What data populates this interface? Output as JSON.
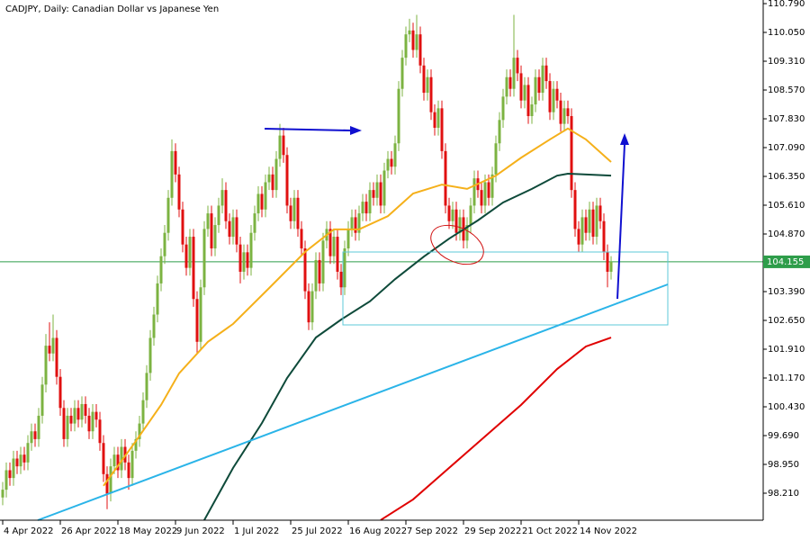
{
  "chart_data": {
    "type": "candlestick",
    "title": "CADJPY, Daily:  Canadian Dollar vs Japanese Yen",
    "up_color": "#7cb342",
    "down_color": "#e01010",
    "ylim": [
      97.516,
      110.883
    ],
    "yticks": [
      {
        "value": 110.79,
        "label": "110.790"
      },
      {
        "value": 110.05,
        "label": "110.050"
      },
      {
        "value": 109.31,
        "label": "109.310"
      },
      {
        "value": 108.57,
        "label": "108.570"
      },
      {
        "value": 107.83,
        "label": "107.830"
      },
      {
        "value": 107.09,
        "label": "107.090"
      },
      {
        "value": 106.35,
        "label": "106.350"
      },
      {
        "value": 105.61,
        "label": "105.610"
      },
      {
        "value": 104.87,
        "label": "104.870"
      },
      {
        "value": 103.39,
        "label": "103.390"
      },
      {
        "value": 102.65,
        "label": "102.650"
      },
      {
        "value": 101.91,
        "label": "101.910"
      },
      {
        "value": 101.17,
        "label": "101.170"
      },
      {
        "value": 100.43,
        "label": "100.430"
      },
      {
        "value": 99.69,
        "label": "99.690"
      },
      {
        "value": 98.95,
        "label": "98.950"
      },
      {
        "value": 98.21,
        "label": "98.210"
      }
    ],
    "current_price": 104.155,
    "current_price_color": "#2e9d4a",
    "categories": [
      "4 Apr 2022",
      null,
      null,
      null,
      null,
      null,
      null,
      null,
      null,
      null,
      null,
      null,
      null,
      null,
      null,
      null,
      "26 Apr 2022",
      null,
      null,
      null,
      null,
      null,
      null,
      null,
      null,
      null,
      null,
      null,
      null,
      null,
      null,
      null,
      "18 May 2022",
      null,
      null,
      null,
      null,
      null,
      null,
      null,
      null,
      null,
      null,
      null,
      null,
      null,
      null,
      null,
      "9 Jun 2022",
      null,
      null,
      null,
      null,
      null,
      null,
      null,
      null,
      null,
      null,
      null,
      null,
      null,
      null,
      null,
      "1 Jul 2022",
      null,
      null,
      null,
      null,
      null,
      null,
      null,
      null,
      null,
      null,
      null,
      null,
      null,
      null,
      null,
      "25 Jul 2022",
      null,
      null,
      null,
      null,
      null,
      null,
      null,
      null,
      null,
      null,
      null,
      null,
      null,
      null,
      null,
      "16 Aug 2022",
      null,
      null,
      null,
      null,
      null,
      null,
      null,
      null,
      null,
      null,
      null,
      null,
      null,
      null,
      null,
      "7 Sep 2022",
      null,
      null,
      null,
      null,
      null,
      null,
      null,
      null,
      null,
      null,
      null,
      null,
      null,
      null,
      null,
      "29 Sep 2022",
      null,
      null,
      null,
      null,
      null,
      null,
      null,
      null,
      null,
      null,
      null,
      null,
      null,
      null,
      null,
      "21 Oct 2022",
      null,
      null,
      null,
      null,
      null,
      null,
      null,
      null,
      null,
      null,
      null,
      null,
      null,
      null,
      null,
      "14 Nov 2022",
      null,
      null,
      null,
      null,
      null,
      null,
      null,
      null,
      null
    ],
    "ohlc": [
      [
        98.1,
        98.5,
        97.9,
        98.3
      ],
      [
        98.3,
        99.0,
        98.1,
        98.8
      ],
      [
        98.8,
        99.0,
        98.4,
        98.6
      ],
      [
        98.6,
        99.3,
        98.4,
        99.1
      ],
      [
        99.1,
        99.3,
        98.7,
        98.9
      ],
      [
        98.9,
        99.4,
        98.7,
        99.2
      ],
      [
        99.2,
        99.4,
        98.8,
        99.0
      ],
      [
        99.0,
        99.7,
        98.8,
        99.5
      ],
      [
        99.5,
        100.0,
        99.3,
        99.8
      ],
      [
        99.8,
        100.0,
        99.4,
        99.6
      ],
      [
        99.6,
        100.4,
        99.4,
        100.2
      ],
      [
        100.2,
        101.2,
        100.0,
        101.0
      ],
      [
        101.0,
        102.3,
        100.8,
        102.0
      ],
      [
        102.0,
        102.6,
        101.6,
        101.8
      ],
      [
        101.8,
        102.8,
        101.6,
        102.2
      ],
      [
        102.2,
        102.4,
        101.0,
        101.2
      ],
      [
        101.2,
        101.4,
        100.2,
        100.4
      ],
      [
        100.4,
        100.6,
        99.4,
        99.6
      ],
      [
        99.6,
        100.4,
        99.4,
        100.2
      ],
      [
        100.2,
        100.4,
        99.8,
        100.0
      ],
      [
        100.0,
        100.6,
        99.8,
        100.4
      ],
      [
        100.4,
        100.6,
        99.9,
        100.1
      ],
      [
        100.1,
        100.7,
        99.9,
        100.5
      ],
      [
        100.5,
        100.7,
        100.0,
        100.2
      ],
      [
        100.2,
        100.4,
        99.6,
        99.8
      ],
      [
        99.8,
        100.5,
        99.6,
        100.3
      ],
      [
        100.3,
        100.5,
        99.9,
        100.1
      ],
      [
        100.1,
        100.3,
        99.3,
        99.5
      ],
      [
        99.5,
        99.7,
        98.5,
        98.7
      ],
      [
        98.7,
        98.9,
        97.8,
        98.2
      ],
      [
        98.2,
        99.1,
        98.0,
        98.9
      ],
      [
        98.9,
        99.4,
        98.7,
        99.2
      ],
      [
        99.2,
        99.4,
        98.6,
        98.8
      ],
      [
        98.8,
        99.6,
        98.6,
        99.4
      ],
      [
        99.4,
        99.6,
        98.8,
        99.0
      ],
      [
        99.0,
        99.2,
        98.3,
        98.6
      ],
      [
        98.6,
        99.5,
        98.4,
        99.3
      ],
      [
        99.3,
        99.8,
        99.1,
        99.6
      ],
      [
        99.6,
        100.2,
        99.4,
        100.0
      ],
      [
        100.0,
        100.8,
        99.8,
        100.6
      ],
      [
        100.6,
        101.5,
        100.4,
        101.3
      ],
      [
        101.3,
        102.4,
        101.1,
        102.2
      ],
      [
        102.2,
        103.0,
        102.0,
        102.8
      ],
      [
        102.8,
        103.8,
        102.6,
        103.6
      ],
      [
        103.6,
        104.5,
        103.4,
        104.3
      ],
      [
        104.3,
        105.1,
        104.1,
        104.9
      ],
      [
        104.9,
        106.0,
        104.7,
        105.8
      ],
      [
        105.8,
        107.3,
        105.6,
        107.0
      ],
      [
        107.0,
        107.2,
        106.2,
        106.4
      ],
      [
        106.4,
        106.6,
        105.3,
        105.5
      ],
      [
        105.5,
        105.7,
        104.4,
        104.6
      ],
      [
        104.6,
        104.8,
        103.8,
        104.0
      ],
      [
        104.0,
        105.0,
        103.8,
        104.8
      ],
      [
        104.8,
        105.0,
        103.0,
        103.2
      ],
      [
        103.2,
        103.4,
        101.8,
        102.1
      ],
      [
        102.1,
        103.7,
        101.9,
        103.5
      ],
      [
        103.5,
        105.2,
        103.3,
        105.0
      ],
      [
        105.0,
        105.6,
        104.8,
        105.4
      ],
      [
        105.4,
        105.6,
        104.3,
        104.5
      ],
      [
        104.5,
        105.3,
        104.3,
        105.1
      ],
      [
        105.1,
        105.8,
        104.9,
        105.6
      ],
      [
        105.6,
        106.3,
        105.4,
        106.0
      ],
      [
        106.0,
        106.2,
        105.0,
        105.2
      ],
      [
        105.2,
        105.4,
        104.6,
        104.8
      ],
      [
        104.8,
        105.5,
        104.6,
        105.3
      ],
      [
        105.3,
        105.5,
        104.4,
        104.6
      ],
      [
        104.6,
        104.8,
        103.6,
        103.9
      ],
      [
        103.9,
        104.6,
        103.7,
        104.4
      ],
      [
        104.4,
        104.6,
        103.8,
        104.0
      ],
      [
        104.0,
        105.1,
        103.8,
        104.9
      ],
      [
        104.9,
        105.6,
        104.7,
        105.4
      ],
      [
        105.4,
        106.1,
        105.2,
        105.9
      ],
      [
        105.9,
        106.1,
        105.3,
        105.5
      ],
      [
        105.5,
        106.4,
        105.3,
        106.2
      ],
      [
        106.2,
        106.6,
        106.0,
        106.4
      ],
      [
        106.4,
        106.6,
        105.8,
        106.0
      ],
      [
        106.0,
        107.0,
        105.8,
        106.8
      ],
      [
        106.8,
        107.7,
        106.6,
        107.4
      ],
      [
        107.4,
        107.6,
        106.7,
        106.9
      ],
      [
        106.9,
        107.1,
        105.4,
        105.6
      ],
      [
        105.6,
        105.8,
        105.0,
        105.2
      ],
      [
        105.2,
        106.0,
        105.0,
        105.8
      ],
      [
        105.8,
        106.0,
        104.8,
        105.0
      ],
      [
        105.0,
        105.2,
        104.3,
        104.5
      ],
      [
        104.5,
        104.7,
        103.2,
        103.4
      ],
      [
        103.4,
        103.6,
        102.4,
        102.6
      ],
      [
        102.6,
        103.6,
        102.4,
        103.4
      ],
      [
        103.4,
        104.4,
        103.2,
        104.2
      ],
      [
        104.2,
        104.4,
        103.4,
        103.6
      ],
      [
        103.6,
        104.9,
        103.4,
        104.7
      ],
      [
        104.7,
        105.2,
        104.5,
        105.0
      ],
      [
        105.0,
        105.2,
        104.1,
        104.3
      ],
      [
        104.3,
        105.0,
        104.1,
        104.8
      ],
      [
        104.8,
        105.0,
        103.7,
        103.9
      ],
      [
        103.9,
        104.1,
        103.3,
        103.5
      ],
      [
        103.5,
        104.7,
        103.3,
        104.5
      ],
      [
        104.5,
        105.2,
        104.3,
        105.0
      ],
      [
        105.0,
        105.5,
        104.8,
        105.3
      ],
      [
        105.3,
        105.5,
        104.7,
        104.9
      ],
      [
        104.9,
        105.6,
        104.7,
        105.4
      ],
      [
        105.4,
        105.9,
        105.2,
        105.7
      ],
      [
        105.7,
        105.9,
        105.2,
        105.4
      ],
      [
        105.4,
        106.2,
        105.2,
        106.0
      ],
      [
        106.0,
        106.2,
        105.6,
        105.8
      ],
      [
        105.8,
        106.4,
        105.6,
        106.2
      ],
      [
        106.2,
        106.4,
        105.4,
        105.6
      ],
      [
        105.6,
        106.7,
        105.4,
        106.5
      ],
      [
        106.5,
        107.0,
        106.3,
        106.8
      ],
      [
        106.8,
        107.0,
        106.4,
        106.6
      ],
      [
        106.6,
        107.4,
        106.4,
        107.2
      ],
      [
        107.2,
        108.8,
        107.0,
        108.6
      ],
      [
        108.6,
        109.6,
        108.4,
        109.4
      ],
      [
        109.4,
        110.2,
        109.2,
        110.0
      ],
      [
        110.0,
        110.4,
        109.8,
        110.1
      ],
      [
        110.1,
        110.3,
        109.4,
        109.6
      ],
      [
        109.6,
        110.5,
        109.4,
        110.0
      ],
      [
        110.0,
        110.2,
        109.0,
        109.2
      ],
      [
        109.2,
        109.4,
        108.3,
        108.5
      ],
      [
        108.5,
        109.1,
        108.3,
        108.9
      ],
      [
        108.9,
        109.1,
        107.8,
        108.0
      ],
      [
        108.0,
        108.2,
        107.4,
        107.6
      ],
      [
        107.6,
        108.3,
        107.4,
        108.1
      ],
      [
        108.1,
        108.3,
        106.8,
        107.0
      ],
      [
        107.0,
        107.2,
        105.4,
        105.6
      ],
      [
        105.6,
        105.8,
        105.0,
        105.2
      ],
      [
        105.2,
        105.7,
        105.0,
        105.5
      ],
      [
        105.5,
        105.7,
        104.7,
        104.9
      ],
      [
        104.9,
        105.5,
        104.7,
        105.3
      ],
      [
        105.3,
        105.5,
        104.5,
        104.7
      ],
      [
        104.7,
        105.3,
        104.5,
        105.1
      ],
      [
        105.1,
        105.8,
        104.9,
        105.6
      ],
      [
        105.6,
        106.5,
        105.4,
        106.3
      ],
      [
        106.3,
        106.5,
        105.8,
        106.0
      ],
      [
        106.0,
        106.2,
        105.4,
        105.6
      ],
      [
        105.6,
        106.4,
        105.4,
        106.2
      ],
      [
        106.2,
        106.4,
        105.6,
        105.8
      ],
      [
        105.8,
        106.6,
        105.6,
        106.4
      ],
      [
        106.4,
        107.4,
        106.2,
        107.2
      ],
      [
        107.2,
        108.0,
        107.0,
        107.8
      ],
      [
        107.8,
        108.6,
        107.6,
        108.4
      ],
      [
        108.4,
        109.1,
        108.2,
        108.9
      ],
      [
        108.9,
        109.1,
        108.4,
        108.6
      ],
      [
        108.6,
        110.5,
        108.4,
        109.4
      ],
      [
        109.4,
        109.6,
        108.8,
        109.0
      ],
      [
        109.0,
        109.2,
        108.1,
        108.3
      ],
      [
        108.3,
        108.9,
        108.1,
        108.7
      ],
      [
        108.7,
        108.9,
        107.7,
        107.9
      ],
      [
        107.9,
        108.4,
        107.7,
        108.2
      ],
      [
        108.2,
        109.1,
        108.0,
        108.9
      ],
      [
        108.9,
        109.1,
        108.3,
        108.5
      ],
      [
        108.5,
        109.4,
        108.3,
        109.2
      ],
      [
        109.2,
        109.4,
        108.6,
        108.8
      ],
      [
        108.8,
        109.0,
        107.8,
        108.0
      ],
      [
        108.0,
        108.8,
        107.8,
        108.6
      ],
      [
        108.6,
        108.8,
        108.1,
        108.3
      ],
      [
        108.3,
        108.5,
        107.5,
        107.7
      ],
      [
        107.7,
        108.3,
        107.5,
        108.1
      ],
      [
        108.1,
        108.3,
        107.7,
        107.9
      ],
      [
        107.9,
        108.1,
        105.8,
        106.0
      ],
      [
        106.0,
        106.2,
        104.8,
        105.0
      ],
      [
        105.0,
        105.2,
        104.4,
        104.6
      ],
      [
        104.6,
        105.5,
        104.4,
        105.3
      ],
      [
        105.3,
        105.5,
        104.7,
        104.9
      ],
      [
        104.9,
        105.7,
        104.7,
        105.5
      ],
      [
        105.5,
        105.7,
        104.6,
        104.8
      ],
      [
        104.8,
        105.8,
        104.6,
        105.6
      ],
      [
        105.6,
        105.8,
        105.0,
        105.2
      ],
      [
        105.2,
        105.4,
        104.2,
        104.4
      ],
      [
        104.4,
        104.6,
        103.5,
        103.9
      ],
      [
        103.9,
        104.3,
        103.7,
        104.155
      ]
    ],
    "overlays": [
      {
        "color": "#f5b01a",
        "x": [
          28,
          37,
          44,
          49,
          57,
          64,
          74,
          84,
          92,
          99,
          107,
          114,
          122,
          129,
          137,
          144,
          152,
          157,
          162,
          169
        ],
        "values": [
          98.4,
          99.55,
          100.48,
          101.29,
          102.1,
          102.56,
          103.48,
          104.41,
          104.99,
          104.99,
          105.33,
          105.91,
          106.14,
          106.03,
          106.37,
          106.83,
          107.3,
          107.58,
          107.3,
          106.72
        ]
      },
      {
        "color": "#0e4a3a",
        "x": [
          56,
          64,
          72,
          79,
          87,
          94,
          102,
          109,
          117,
          124,
          132,
          139,
          147,
          154,
          157,
          169
        ],
        "values": [
          97.52,
          98.86,
          100.01,
          101.17,
          102.21,
          102.67,
          103.14,
          103.71,
          104.29,
          104.75,
          105.22,
          105.68,
          106.03,
          106.37,
          106.42,
          106.37
        ]
      },
      {
        "color": "#e00000",
        "x": [
          105,
          114,
          124,
          134,
          144,
          154,
          162,
          169
        ],
        "values": [
          97.52,
          98.05,
          98.86,
          99.67,
          100.48,
          101.4,
          101.98,
          102.21
        ]
      }
    ]
  }
}
